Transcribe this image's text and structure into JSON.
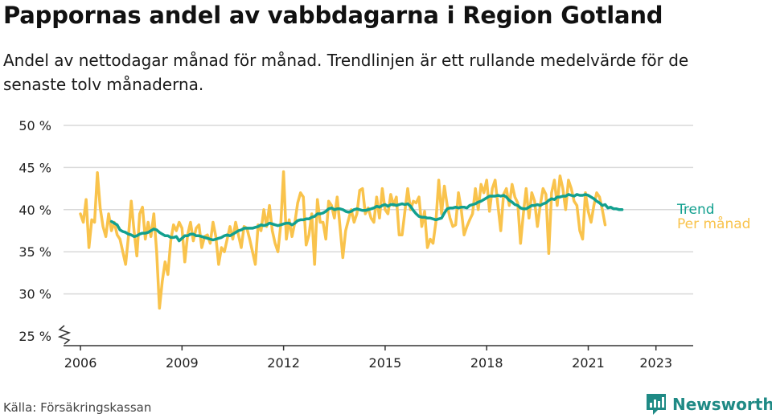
{
  "title": "Pappornas andel av vabbdagarna i Region Gotland",
  "subtitle": "Andel av nettodagar månad för månad. Trendlinjen är ett rullande medelvärde för de senaste tolv månaderna.",
  "source": "Källa: Försäkringskassan",
  "brand": "Newsworthy",
  "colors": {
    "trend": "#12a08f",
    "monthly": "#f9c34c",
    "grid": "#d9d9d9",
    "axis": "#333333",
    "brand": "#1f8a85"
  },
  "chart_data": {
    "type": "line",
    "title": "Pappornas andel av vabbdagarna i Region Gotland",
    "xlabel": "",
    "ylabel": "",
    "xlim": [
      2005.5,
      2024.1
    ],
    "ylim": [
      25,
      50
    ],
    "y_ticks": [
      25,
      30,
      35,
      40,
      45,
      50
    ],
    "y_tick_labels": [
      "25 %",
      "30 %",
      "35 %",
      "40 %",
      "45 %",
      "50 %"
    ],
    "x_ticks": [
      2006,
      2009,
      2012,
      2015,
      2018,
      2021,
      2023
    ],
    "x_tick_labels": [
      "2006",
      "2009",
      "2012",
      "2015",
      "2018",
      "2021",
      "2023"
    ],
    "grid": true,
    "axis_break": true,
    "series": [
      {
        "name": "Per månad",
        "start": 2006.0,
        "step": 0.08333,
        "values": [
          39.5,
          38.5,
          41.2,
          35.5,
          38.8,
          38.5,
          44.4,
          40.2,
          38.0,
          36.8,
          39.5,
          37.5,
          38.5,
          37.0,
          36.5,
          35.0,
          33.5,
          36.8,
          41.0,
          37.5,
          34.5,
          39.5,
          40.3,
          36.5,
          38.5,
          36.8,
          39.5,
          35.0,
          28.3,
          31.5,
          33.8,
          32.3,
          36.3,
          38.2,
          37.5,
          38.5,
          37.8,
          33.8,
          37.0,
          38.5,
          36.3,
          37.8,
          38.2,
          35.5,
          36.8,
          37.0,
          36.0,
          38.5,
          36.8,
          33.5,
          35.5,
          35.0,
          36.5,
          38.0,
          36.5,
          38.5,
          37.0,
          35.5,
          38.0,
          37.8,
          36.5,
          35.0,
          33.5,
          38.2,
          37.5,
          40.0,
          38.0,
          40.5,
          37.5,
          36.0,
          35.0,
          38.2,
          44.5,
          36.5,
          38.8,
          36.8,
          38.5,
          40.8,
          42.0,
          41.5,
          35.8,
          37.0,
          39.5,
          33.5,
          41.2,
          38.5,
          38.5,
          36.5,
          41.0,
          40.5,
          39.0,
          41.5,
          38.0,
          34.3,
          37.5,
          38.8,
          40.0,
          38.5,
          39.5,
          42.3,
          42.5,
          39.5,
          40.2,
          39.0,
          38.5,
          41.5,
          39.0,
          42.5,
          40.0,
          39.5,
          41.8,
          40.5,
          41.5,
          37.0,
          37.0,
          39.8,
          42.5,
          40.0,
          41.0,
          40.8,
          41.5,
          38.0,
          39.8,
          35.5,
          36.5,
          36.0,
          38.5,
          43.5,
          39.5,
          42.8,
          40.5,
          39.0,
          38.0,
          38.2,
          42.0,
          40.0,
          37.0,
          38.0,
          38.8,
          39.5,
          42.5,
          40.0,
          43.0,
          42.0,
          43.5,
          39.8,
          42.5,
          43.5,
          40.5,
          37.5,
          41.8,
          42.5,
          40.5,
          43.0,
          41.5,
          40.8,
          36.0,
          39.5,
          42.5,
          39.0,
          42.0,
          41.0,
          38.0,
          40.5,
          42.5,
          41.8,
          34.8,
          42.0,
          43.5,
          40.5,
          44.0,
          42.5,
          40.0,
          43.5,
          42.5,
          41.0,
          40.5,
          37.5,
          36.5,
          42.0,
          39.8,
          38.5,
          40.5,
          42.0,
          41.5,
          40.0,
          38.2
        ]
      },
      {
        "name": "Trend",
        "start": 2006.9167,
        "step": 0.08333,
        "values": [
          38.6,
          38.4,
          38.2,
          37.6,
          37.4,
          37.3,
          37.1,
          37.0,
          36.8,
          36.9,
          37.1,
          37.2,
          37.2,
          37.3,
          37.5,
          37.7,
          37.6,
          37.3,
          37.1,
          36.9,
          36.9,
          36.7,
          36.7,
          36.8,
          36.3,
          36.6,
          36.9,
          36.9,
          37.1,
          37.1,
          36.9,
          36.9,
          36.8,
          36.7,
          36.6,
          36.5,
          36.4,
          36.5,
          36.6,
          36.7,
          36.9,
          37.0,
          36.9,
          37.1,
          37.3,
          37.5,
          37.6,
          37.8,
          37.8,
          37.8,
          37.8,
          37.9,
          38.0,
          38.2,
          38.1,
          38.2,
          38.4,
          38.3,
          38.2,
          38.1,
          38.2,
          38.3,
          38.4,
          38.4,
          38.2,
          38.4,
          38.7,
          38.8,
          38.8,
          38.9,
          38.9,
          39.1,
          39.2,
          39.5,
          39.5,
          39.6,
          39.8,
          40.1,
          40.2,
          40.0,
          40.1,
          40.1,
          40.0,
          39.8,
          39.7,
          39.8,
          40.0,
          40.1,
          40.0,
          39.9,
          39.9,
          40.0,
          40.1,
          40.2,
          40.4,
          40.3,
          40.5,
          40.6,
          40.4,
          40.6,
          40.6,
          40.5,
          40.6,
          40.7,
          40.6,
          40.7,
          40.4,
          39.9,
          39.5,
          39.2,
          39.1,
          39.1,
          39.0,
          39.0,
          38.9,
          38.8,
          38.9,
          39.0,
          39.6,
          40.1,
          40.2,
          40.2,
          40.3,
          40.2,
          40.3,
          40.3,
          40.2,
          40.5,
          40.6,
          40.7,
          40.9,
          41.0,
          41.2,
          41.4,
          41.6,
          41.6,
          41.6,
          41.7,
          41.6,
          41.7,
          41.5,
          41.1,
          40.9,
          40.6,
          40.5,
          40.2,
          40.1,
          40.1,
          40.3,
          40.5,
          40.5,
          40.6,
          40.5,
          40.7,
          40.8,
          41.1,
          41.3,
          41.2,
          41.5,
          41.5,
          41.6,
          41.6,
          41.8,
          41.7,
          41.6,
          41.8,
          41.7,
          41.7,
          41.8,
          41.7,
          41.5,
          41.3,
          41.0,
          40.8,
          40.5,
          40.6,
          40.2,
          40.3,
          40.1,
          40.1,
          40.0,
          40.0
        ]
      }
    ],
    "annotations": [
      "Trend",
      "Per månad"
    ]
  }
}
